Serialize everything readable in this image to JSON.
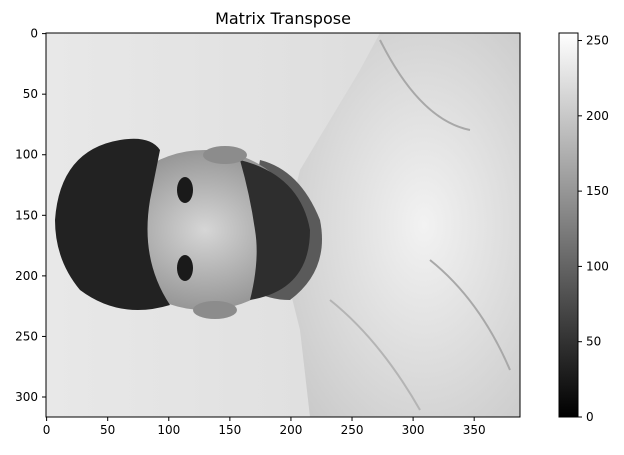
{
  "chart_data": {
    "type": "heatmap",
    "title": "Matrix Transpose",
    "image_description": "",
    "cmap": "gray",
    "image_shape": {
      "rows": 317,
      "cols": 388
    },
    "xlim": [
      -0.5,
      387.5
    ],
    "ylim": [
      316.5,
      -0.5
    ],
    "x_ticks": [
      0,
      50,
      100,
      150,
      200,
      250,
      300,
      350
    ],
    "y_ticks": [
      0,
      50,
      100,
      150,
      200,
      250,
      300
    ],
    "colorbar": {
      "vmin": 0,
      "vmax": 255,
      "ticks": [
        0,
        50,
        100,
        150,
        200,
        250
      ]
    },
    "xlabel": "",
    "ylabel": "",
    "grid": false
  },
  "colors": {
    "background": "#ffffff",
    "axis": "#000000"
  }
}
